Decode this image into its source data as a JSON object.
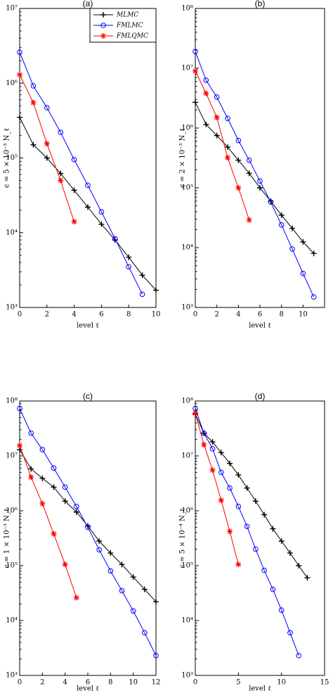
{
  "chart_data": [
    {
      "type": "line",
      "title": "(a)",
      "xlabel": "level ℓ",
      "ylabel": "ϵ = 5 × 10⁻³    N_ℓ",
      "log_y": true,
      "legend": "upper right",
      "xlim": [
        0,
        10
      ],
      "xticks": [
        0,
        2,
        4,
        6,
        8,
        10
      ],
      "ylim": [
        1000,
        10000000
      ],
      "yticks": [
        {
          "value": 1000,
          "label": "10³"
        },
        {
          "value": 10000,
          "label": "10⁴"
        },
        {
          "value": 100000,
          "label": "10⁵"
        },
        {
          "value": 1000000,
          "label": "10⁶"
        },
        {
          "value": 10000000,
          "label": "10⁷"
        }
      ],
      "series": [
        {
          "name": "MLMC",
          "color": "#000000",
          "marker": "plus",
          "x": [
            0,
            1,
            2,
            3,
            4,
            5,
            6,
            7,
            8,
            9,
            10
          ],
          "values": [
            350000,
            150000,
            100000,
            62000,
            37000,
            22000,
            13000,
            8000,
            4700,
            2700,
            1700
          ]
        },
        {
          "name": "FMLMC",
          "color": "#0000ff",
          "marker": "circle",
          "x": [
            0,
            1,
            2,
            3,
            4,
            5,
            6,
            7,
            8,
            9
          ],
          "values": [
            2600000,
            920000,
            470000,
            220000,
            95000,
            43000,
            19000,
            8300,
            3500,
            1500
          ]
        },
        {
          "name": "FMLQMC",
          "color": "#ff0000",
          "marker": "star",
          "x": [
            0,
            1,
            2,
            3,
            4
          ],
          "values": [
            1300000,
            550000,
            155000,
            50000,
            14000
          ]
        }
      ]
    },
    {
      "type": "line",
      "title": "(b)",
      "xlabel": "level ℓ",
      "ylabel": "ϵ = 2 × 10⁻³    N_ℓ",
      "log_y": true,
      "legend": "none",
      "xlim": [
        0,
        12
      ],
      "xticks": [
        0,
        2,
        4,
        6,
        8,
        10
      ],
      "ylim": [
        1000,
        100000000
      ],
      "yticks": [
        {
          "value": 1000,
          "label": "10³"
        },
        {
          "value": 10000,
          "label": "10⁴"
        },
        {
          "value": 100000,
          "label": "10⁵"
        },
        {
          "value": 1000000,
          "label": "10⁶"
        },
        {
          "value": 10000000,
          "label": "10⁷"
        },
        {
          "value": 100000000,
          "label": "10⁸"
        }
      ],
      "series": [
        {
          "name": "MLMC",
          "color": "#000000",
          "marker": "plus",
          "x": [
            0,
            1,
            2,
            3,
            4,
            5,
            6,
            7,
            8,
            9,
            10,
            11
          ],
          "values": [
            2700000,
            1150000,
            750000,
            480000,
            290000,
            175000,
            100000,
            60000,
            35000,
            21000,
            12500,
            8000
          ]
        },
        {
          "name": "FMLMC",
          "color": "#0000ff",
          "marker": "circle",
          "x": [
            0,
            1,
            2,
            3,
            4,
            5,
            6,
            7,
            8,
            9,
            10,
            11
          ],
          "values": [
            19000000,
            6300000,
            3300000,
            1450000,
            620000,
            290000,
            130000,
            58000,
            24000,
            9500,
            3700,
            1500
          ]
        },
        {
          "name": "FMLQMC",
          "color": "#ff0000",
          "marker": "star",
          "x": [
            0,
            1,
            2,
            3,
            4,
            5
          ],
          "values": [
            9000000,
            3800000,
            1500000,
            320000,
            100000,
            29000
          ]
        }
      ]
    },
    {
      "type": "line",
      "title": "(c)",
      "xlabel": "level ℓ",
      "ylabel": "ϵ = 1 × 10⁻³    N_ℓ",
      "log_y": true,
      "legend": "none",
      "xlim": [
        0,
        12
      ],
      "xticks": [
        0,
        2,
        4,
        6,
        8,
        10,
        12
      ],
      "ylim": [
        1000,
        100000000
      ],
      "yticks": [
        {
          "value": 1000,
          "label": "10³"
        },
        {
          "value": 10000,
          "label": "10⁴"
        },
        {
          "value": 100000,
          "label": "10⁵"
        },
        {
          "value": 1000000,
          "label": "10⁶"
        },
        {
          "value": 10000000,
          "label": "10⁷"
        },
        {
          "value": 100000000,
          "label": "10⁸"
        }
      ],
      "series": [
        {
          "name": "MLMC",
          "color": "#000000",
          "marker": "plus",
          "x": [
            0,
            1,
            2,
            3,
            4,
            5,
            6,
            7,
            8,
            9,
            10,
            11,
            12
          ],
          "values": [
            13000000,
            5800000,
            3900000,
            2700000,
            1500000,
            950000,
            530000,
            280000,
            170000,
            105000,
            62000,
            37000,
            22000
          ]
        },
        {
          "name": "FMLMC",
          "color": "#0000ff",
          "marker": "circle",
          "x": [
            0,
            1,
            2,
            3,
            4,
            5,
            6,
            7,
            8,
            9,
            10,
            11,
            12
          ],
          "values": [
            73000000,
            26000000,
            13000000,
            6000000,
            2700000,
            1200000,
            500000,
            195000,
            80000,
            35000,
            15000,
            6000,
            2300
          ]
        },
        {
          "name": "FMLQMC",
          "color": "#ff0000",
          "marker": "star",
          "x": [
            0,
            1,
            2,
            3,
            4,
            5
          ],
          "values": [
            15500000,
            4100000,
            1350000,
            380000,
            105000,
            26000
          ]
        }
      ]
    },
    {
      "type": "line",
      "title": "(d)",
      "xlabel": "level ℓ",
      "ylabel": "ϵ = 5 × 10⁻⁴    N_ℓ",
      "log_y": true,
      "legend": "none",
      "xlim": [
        0,
        15
      ],
      "xticks": [
        0,
        5,
        10,
        15
      ],
      "ylim": [
        1000,
        100000000
      ],
      "yticks": [
        {
          "value": 1000,
          "label": "10³"
        },
        {
          "value": 10000,
          "label": "10⁴"
        },
        {
          "value": 100000,
          "label": "10⁵"
        },
        {
          "value": 1000000,
          "label": "10⁶"
        },
        {
          "value": 10000000,
          "label": "10⁷"
        },
        {
          "value": 100000000,
          "label": "10⁸"
        }
      ],
      "series": [
        {
          "name": "MLMC",
          "color": "#000000",
          "marker": "plus",
          "x": [
            0,
            1,
            2,
            3,
            4,
            5,
            6,
            7,
            8,
            9,
            10,
            11,
            12,
            13
          ],
          "values": [
            58000000,
            26000000,
            18000000,
            11500000,
            7300000,
            4500000,
            2600000,
            1500000,
            850000,
            470000,
            280000,
            170000,
            100000,
            60000
          ]
        },
        {
          "name": "FMLMC",
          "color": "#0000ff",
          "marker": "circle",
          "x": [
            0,
            1,
            2,
            3,
            4,
            5,
            6,
            7,
            8,
            9,
            10,
            11,
            12
          ],
          "values": [
            73000000,
            26000000,
            13500000,
            5000000,
            2600000,
            1200000,
            520000,
            200000,
            82000,
            37000,
            15500,
            6000,
            2300
          ]
        },
        {
          "name": "FMLQMC",
          "color": "#ff0000",
          "marker": "star",
          "x": [
            0,
            1,
            2,
            3,
            4,
            5
          ],
          "values": [
            60000000,
            16000000,
            5500000,
            1550000,
            420000,
            105000
          ]
        }
      ]
    }
  ]
}
